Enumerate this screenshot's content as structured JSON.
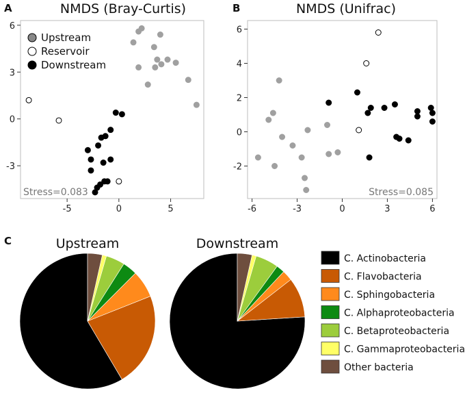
{
  "panels": {
    "a": {
      "label": "A"
    },
    "b": {
      "label": "B"
    },
    "c": {
      "label": "C"
    }
  },
  "groups": [
    {
      "key": "up",
      "name": "Upstream",
      "fill": "#a0a0a0",
      "stroke": "#a0a0a0"
    },
    {
      "key": "res",
      "name": "Reservoir",
      "fill": "#ffffff",
      "stroke": "#000000"
    },
    {
      "key": "down",
      "name": "Downstream",
      "fill": "#000000",
      "stroke": "#000000"
    }
  ],
  "legend_marker_fills": [
    "#888888",
    "#ffffff",
    "#000000"
  ],
  "chart_data": [
    {
      "type": "scatter",
      "title": "NMDS (Bray-Curtis)",
      "xlim": [
        -9.5,
        8.2
      ],
      "ylim": [
        -5.1,
        6.3
      ],
      "xticks": [
        -5,
        0,
        5
      ],
      "yticks": [
        6,
        3,
        0,
        -3
      ],
      "xtick_labels": [
        "-5",
        "0",
        "5"
      ],
      "ytick_labels": [
        "6",
        "3",
        "0",
        "-3"
      ],
      "legend_position": "top-left",
      "annotation": "Stress=0.083",
      "series": [
        {
          "name": "Upstream",
          "points": [
            [
              2.2,
              5.8
            ],
            [
              1.9,
              5.6
            ],
            [
              1.4,
              4.9
            ],
            [
              4.0,
              5.4
            ],
            [
              3.4,
              4.6
            ],
            [
              4.7,
              3.8
            ],
            [
              3.7,
              3.8
            ],
            [
              3.5,
              3.3
            ],
            [
              4.1,
              3.5
            ],
            [
              5.5,
              3.6
            ],
            [
              1.9,
              3.3
            ],
            [
              2.8,
              2.2
            ],
            [
              6.7,
              2.5
            ],
            [
              7.5,
              0.9
            ]
          ]
        },
        {
          "name": "Reservoir",
          "points": [
            [
              -8.7,
              1.2
            ],
            [
              -5.8,
              -0.1
            ],
            [
              0.0,
              -4.0
            ]
          ]
        },
        {
          "name": "Downstream",
          "points": [
            [
              -0.3,
              0.4
            ],
            [
              0.3,
              0.3
            ],
            [
              -0.8,
              -0.7
            ],
            [
              -1.3,
              -1.1
            ],
            [
              -1.7,
              -1.2
            ],
            [
              -2.0,
              -1.7
            ],
            [
              -3.0,
              -2.0
            ],
            [
              -2.7,
              -2.6
            ],
            [
              -1.5,
              -2.8
            ],
            [
              -0.8,
              -2.6
            ],
            [
              -2.7,
              -3.3
            ],
            [
              -1.4,
              -4.0
            ],
            [
              -1.1,
              -4.0
            ],
            [
              -1.8,
              -4.2
            ],
            [
              -2.1,
              -4.4
            ],
            [
              -2.3,
              -4.7
            ]
          ]
        }
      ]
    },
    {
      "type": "scatter",
      "title": "NMDS (Unifrac)",
      "xlim": [
        -6.3,
        6.3
      ],
      "ylim": [
        -3.9,
        6.5
      ],
      "xticks": [
        -6,
        -3,
        0,
        3,
        6
      ],
      "yticks": [
        6,
        4,
        2,
        0,
        -2
      ],
      "xtick_labels": [
        "-6",
        "-3",
        "0",
        "3",
        "6"
      ],
      "ytick_labels": [
        "6",
        "4",
        "2",
        "0",
        "-2"
      ],
      "annotation": "Stress=0.085",
      "series": [
        {
          "name": "Upstream",
          "points": [
            [
              -4.2,
              3.0
            ],
            [
              -4.6,
              1.1
            ],
            [
              -4.9,
              0.7
            ],
            [
              -4.0,
              -0.3
            ],
            [
              -3.3,
              -0.8
            ],
            [
              -2.3,
              0.1
            ],
            [
              -1.0,
              0.4
            ],
            [
              -0.3,
              -1.2
            ],
            [
              -0.9,
              -1.3
            ],
            [
              -2.7,
              -1.5
            ],
            [
              -5.6,
              -1.5
            ],
            [
              -4.5,
              -2.0
            ],
            [
              -2.5,
              -2.7
            ],
            [
              -2.4,
              -3.4
            ]
          ]
        },
        {
          "name": "Reservoir",
          "points": [
            [
              2.4,
              5.8
            ],
            [
              1.6,
              4.0
            ],
            [
              1.1,
              0.1
            ]
          ]
        },
        {
          "name": "Downstream",
          "points": [
            [
              1.0,
              2.3
            ],
            [
              -0.9,
              1.7
            ],
            [
              1.9,
              1.4
            ],
            [
              1.7,
              1.1
            ],
            [
              2.8,
              1.4
            ],
            [
              3.5,
              1.6
            ],
            [
              3.6,
              -0.3
            ],
            [
              3.8,
              -0.4
            ],
            [
              4.4,
              -0.5
            ],
            [
              5.0,
              1.2
            ],
            [
              5.0,
              0.9
            ],
            [
              5.9,
              1.4
            ],
            [
              6.0,
              1.1
            ],
            [
              6.0,
              0.6
            ],
            [
              1.8,
              -1.5
            ]
          ]
        }
      ]
    },
    {
      "type": "pie",
      "title": "Upstream",
      "categories": [
        "C. Actinobacteria",
        "C. Flavobacteria",
        "C. Sphingobacteria",
        "C. Alphaproteobacteria",
        "C. Betaproteobacteria",
        "C. Gammaproteobacteria",
        "Other bacteria"
      ],
      "values": [
        58.5,
        22.5,
        6.5,
        3.5,
        4.5,
        1.0,
        3.5
      ],
      "colors": [
        "#000000",
        "#c85a04",
        "#ff8a1c",
        "#0d8a12",
        "#9ccd3c",
        "#ffff66",
        "#6e4e3e"
      ]
    },
    {
      "type": "pie",
      "title": "Downstream",
      "categories": [
        "C. Actinobacteria",
        "C. Flavobacteria",
        "C. Sphingobacteria",
        "C. Alphaproteobacteria",
        "C. Betaproteobacteria",
        "C. Gammaproteobacteria",
        "Other bacteria"
      ],
      "values": [
        76.0,
        9.5,
        2.5,
        2.0,
        5.5,
        1.0,
        3.5
      ],
      "colors": [
        "#000000",
        "#c85a04",
        "#ff8a1c",
        "#0d8a12",
        "#9ccd3c",
        "#ffff66",
        "#6e4e3e"
      ]
    }
  ]
}
